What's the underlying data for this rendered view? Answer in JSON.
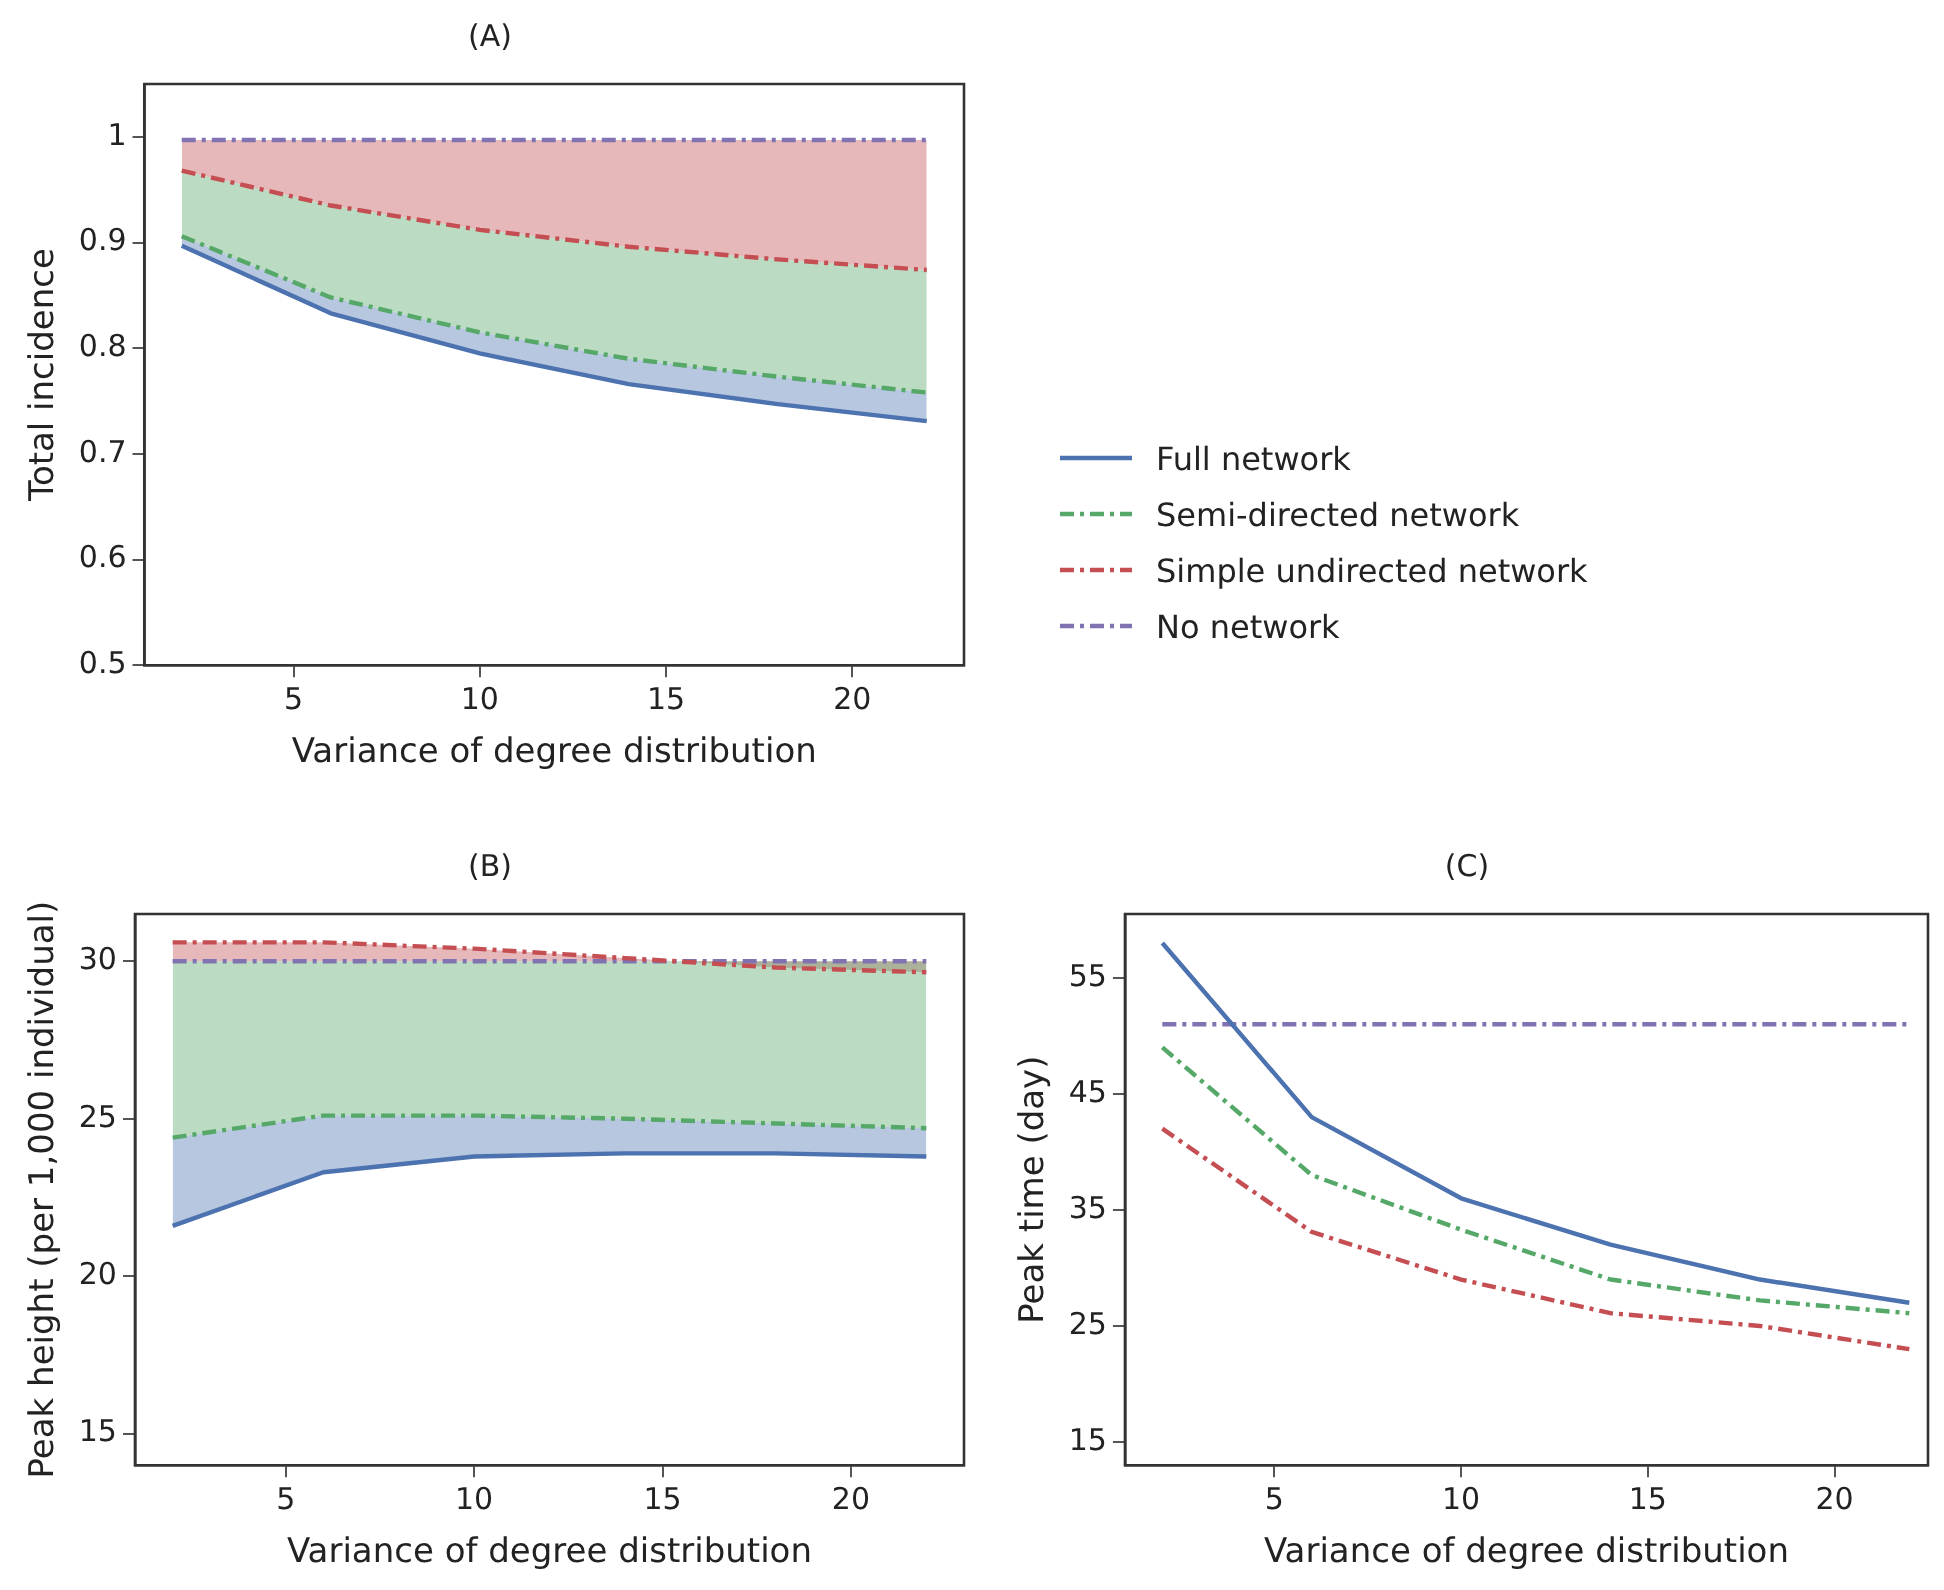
{
  "chart_data": [
    {
      "type": "line",
      "title": "(A)",
      "xlabel": "Variance of degree distribution",
      "ylabel": "Total incidence",
      "x": [
        2,
        6,
        10,
        14,
        18,
        22
      ],
      "xlim": [
        1,
        23
      ],
      "xticks": [
        5,
        10,
        15,
        20
      ],
      "ylim": [
        0.5,
        1.05
      ],
      "yticks": [
        0.5,
        0.6,
        0.7,
        0.8,
        0.9,
        1.0
      ],
      "grid": false,
      "legend": "right",
      "series": [
        {
          "name": "Full network",
          "color": "#4c72b0",
          "line_style": "solid",
          "values": [
            0.897,
            0.833,
            0.795,
            0.766,
            0.747,
            0.731
          ],
          "lower": [
            0.897,
            0.833,
            0.795,
            0.766,
            0.747,
            0.731
          ],
          "upper": [
            0.906,
            0.848,
            0.815,
            0.79,
            0.773,
            0.758
          ]
        },
        {
          "name": "Semi-directed network",
          "color": "#55a868",
          "line_style": "dashed",
          "values": [
            0.906,
            0.848,
            0.815,
            0.79,
            0.773,
            0.758
          ],
          "lower": [
            0.906,
            0.848,
            0.815,
            0.79,
            0.773,
            0.758
          ],
          "upper": [
            0.968,
            0.935,
            0.912,
            0.896,
            0.884,
            0.874
          ]
        },
        {
          "name": "Simple undirected network",
          "color": "#c44e52",
          "line_style": "dashed",
          "values": [
            0.968,
            0.935,
            0.912,
            0.896,
            0.884,
            0.874
          ],
          "lower": [
            0.968,
            0.935,
            0.912,
            0.896,
            0.884,
            0.874
          ],
          "upper": [
            0.997,
            0.997,
            0.997,
            0.997,
            0.997,
            0.997
          ]
        },
        {
          "name": "No network",
          "color": "#8172b2",
          "line_style": "dashed",
          "values": [
            0.997,
            0.997,
            0.997,
            0.997,
            0.997,
            0.997
          ]
        }
      ]
    },
    {
      "type": "line",
      "title": "(B)",
      "xlabel": "Variance of degree distribution",
      "ylabel": "Peak height (per 1,000 individual)",
      "x": [
        2,
        6,
        10,
        14,
        18,
        22
      ],
      "xlim": [
        1,
        23
      ],
      "xticks": [
        5,
        10,
        15,
        20
      ],
      "ylim": [
        14,
        31.5
      ],
      "yticks": [
        15,
        20,
        25,
        30
      ],
      "grid": false,
      "series": [
        {
          "color": "#4c72b0",
          "line_style": "solid",
          "values": [
            21.6,
            23.3,
            23.8,
            23.9,
            23.9,
            23.8
          ],
          "lower": [
            21.6,
            23.3,
            23.8,
            23.9,
            23.9,
            23.8
          ],
          "upper": [
            24.4,
            25.1,
            25.1,
            25.0,
            24.85,
            24.7
          ]
        },
        {
          "color": "#55a868",
          "line_style": "dashed",
          "values": [
            24.4,
            25.1,
            25.1,
            25.0,
            24.85,
            24.7
          ],
          "lower": [
            24.4,
            25.1,
            25.1,
            25.0,
            24.85,
            24.7
          ],
          "upper": [
            30,
            30,
            30,
            30,
            30,
            30
          ]
        },
        {
          "color": "#c44e52",
          "line_style": "dashed",
          "values": [
            30.6,
            30.6,
            30.4,
            30.1,
            29.8,
            29.65
          ],
          "lower": [
            30,
            30,
            30,
            30,
            30,
            30
          ],
          "upper": [
            30.6,
            30.6,
            30.4,
            30.1,
            29.8,
            29.65
          ]
        },
        {
          "color": "#8172b2",
          "line_style": "dashed",
          "values": [
            30,
            30,
            30,
            30,
            30,
            30
          ]
        }
      ]
    },
    {
      "type": "line",
      "title": "(C)",
      "xlabel": "Variance of degree distribution",
      "ylabel": "Peak time (day)",
      "x": [
        2,
        6,
        10,
        14,
        18,
        22
      ],
      "xlim": [
        1,
        22.5
      ],
      "xticks": [
        5,
        10,
        15,
        20
      ],
      "ylim": [
        13,
        60.5
      ],
      "yticks": [
        15,
        25,
        35,
        45,
        55
      ],
      "grid": false,
      "series": [
        {
          "color": "#4c72b0",
          "line_style": "solid",
          "values": [
            58,
            43,
            36,
            32,
            29,
            27
          ]
        },
        {
          "color": "#55a868",
          "line_style": "dashed",
          "values": [
            49,
            38,
            33.3,
            29,
            27.2,
            26.1
          ]
        },
        {
          "color": "#c44e52",
          "line_style": "dashed",
          "values": [
            42,
            33.1,
            29,
            26.1,
            25,
            23
          ]
        },
        {
          "color": "#8172b2",
          "line_style": "dashed",
          "values": [
            51,
            51,
            51,
            51,
            51,
            51
          ]
        }
      ]
    }
  ]
}
